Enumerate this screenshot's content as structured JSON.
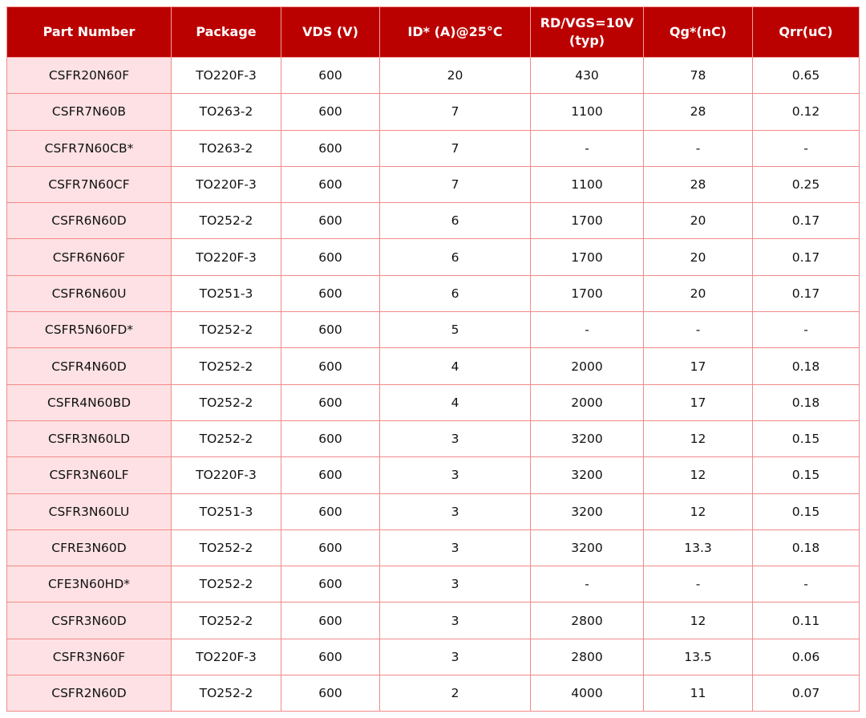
{
  "table": {
    "headers": [
      "Part Number",
      "Package",
      "VDS (V)",
      "ID* (A)@25°C",
      "RD/VGS=10V (typ)",
      "Qg*(nC)",
      "Qrr(uC)"
    ],
    "rows": [
      [
        "CSFR20N60F",
        "TO220F-3",
        "600",
        "20",
        "430",
        "78",
        "0.65"
      ],
      [
        "CSFR7N60B",
        "TO263-2",
        "600",
        "7",
        "1100",
        "28",
        "0.12"
      ],
      [
        "CSFR7N60CB*",
        "TO263-2",
        "600",
        "7",
        "-",
        "-",
        "-"
      ],
      [
        "CSFR7N60CF",
        "TO220F-3",
        "600",
        "7",
        "1100",
        "28",
        "0.25"
      ],
      [
        "CSFR6N60D",
        "TO252-2",
        "600",
        "6",
        "1700",
        "20",
        "0.17"
      ],
      [
        "CSFR6N60F",
        "TO220F-3",
        "600",
        "6",
        "1700",
        "20",
        "0.17"
      ],
      [
        "CSFR6N60U",
        "TO251-3",
        "600",
        "6",
        "1700",
        "20",
        "0.17"
      ],
      [
        "CSFR5N60FD*",
        "TO252-2",
        "600",
        "5",
        "-",
        "-",
        "-"
      ],
      [
        "CSFR4N60D",
        "TO252-2",
        "600",
        "4",
        "2000",
        "17",
        "0.18"
      ],
      [
        "CSFR4N60BD",
        "TO252-2",
        "600",
        "4",
        "2000",
        "17",
        "0.18"
      ],
      [
        "CSFR3N60LD",
        "TO252-2",
        "600",
        "3",
        "3200",
        "12",
        "0.15"
      ],
      [
        "CSFR3N60LF",
        "TO220F-3",
        "600",
        "3",
        "3200",
        "12",
        "0.15"
      ],
      [
        "CSFR3N60LU",
        "TO251-3",
        "600",
        "3",
        "3200",
        "12",
        "0.15"
      ],
      [
        "CFRE3N60D",
        "TO252-2",
        "600",
        "3",
        "3200",
        "13.3",
        "0.18"
      ],
      [
        "CFE3N60HD*",
        "TO252-2",
        "600",
        "3",
        "-",
        "-",
        "-"
      ],
      [
        "CSFR3N60D",
        "TO252-2",
        "600",
        "3",
        "2800",
        "12",
        "0.11"
      ],
      [
        "CSFR3N60F",
        "TO220F-3",
        "600",
        "3",
        "2800",
        "13.5",
        "0.06"
      ],
      [
        "CSFR2N60D",
        "TO252-2",
        "600",
        "2",
        "4000",
        "11",
        "0.07"
      ]
    ]
  },
  "colors": {
    "header_bg": "#bb0000",
    "border": "#f28a8a",
    "first_col_bg": "#fde1e4"
  }
}
